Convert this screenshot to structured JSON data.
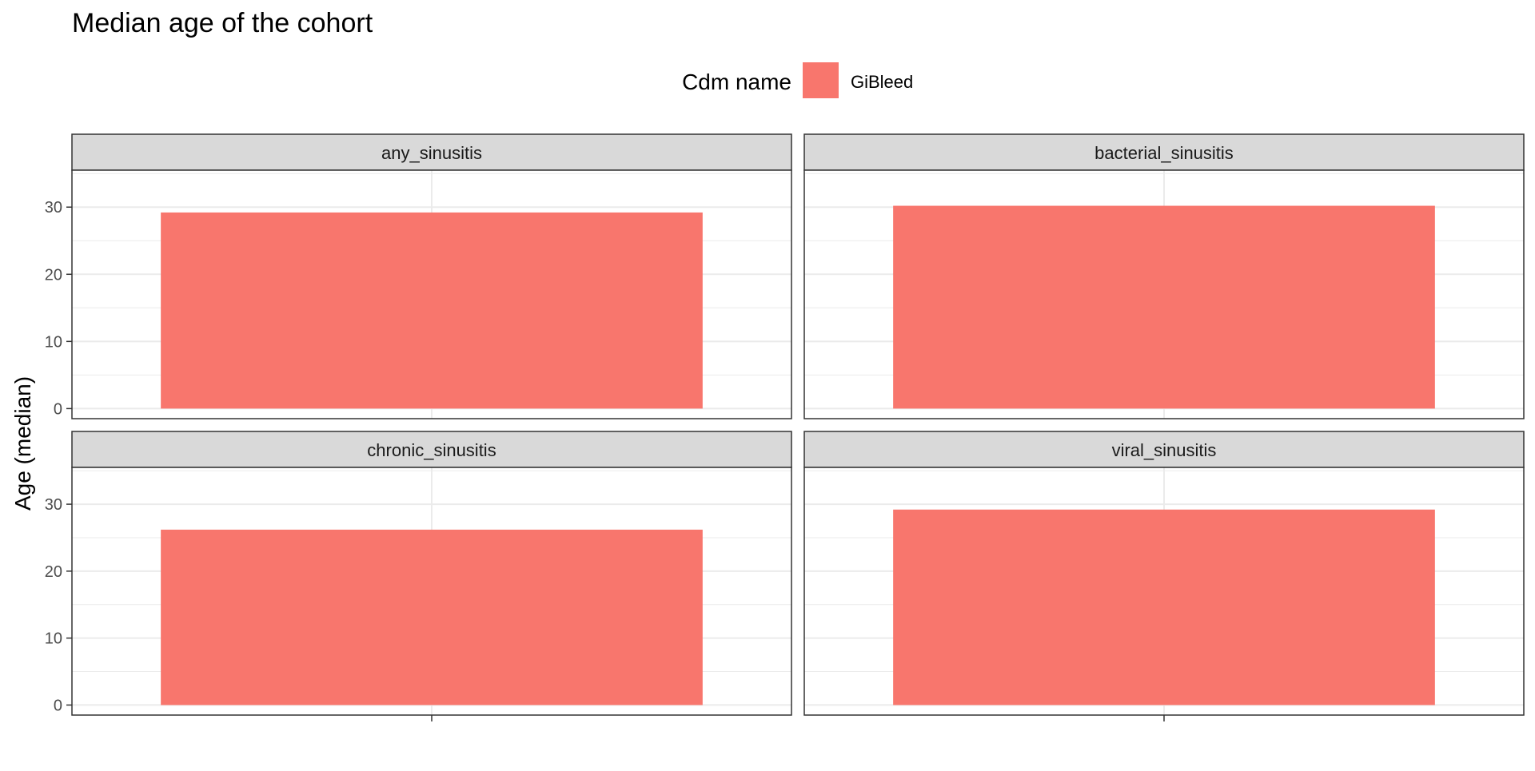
{
  "chart_data": {
    "type": "bar",
    "title": "Median age of the cohort",
    "ylabel": "Age (median)",
    "xlabel": "",
    "ylim": [
      -1.5,
      35.5
    ],
    "yticks": [
      0,
      10,
      20,
      30
    ],
    "grid": true,
    "legend": {
      "title": "Cdm name",
      "placement": "top",
      "entries": [
        {
          "label": "GiBleed",
          "color": "#F8766D"
        }
      ]
    },
    "series": [
      {
        "name": "GiBleed",
        "color": "#F8766D"
      }
    ],
    "facets": [
      {
        "label": "any_sinusitis",
        "value": 29.2
      },
      {
        "label": "bacterial_sinusitis",
        "value": 30.2
      },
      {
        "label": "chronic_sinusitis",
        "value": 26.2
      },
      {
        "label": "viral_sinusitis",
        "value": 29.2
      }
    ]
  }
}
